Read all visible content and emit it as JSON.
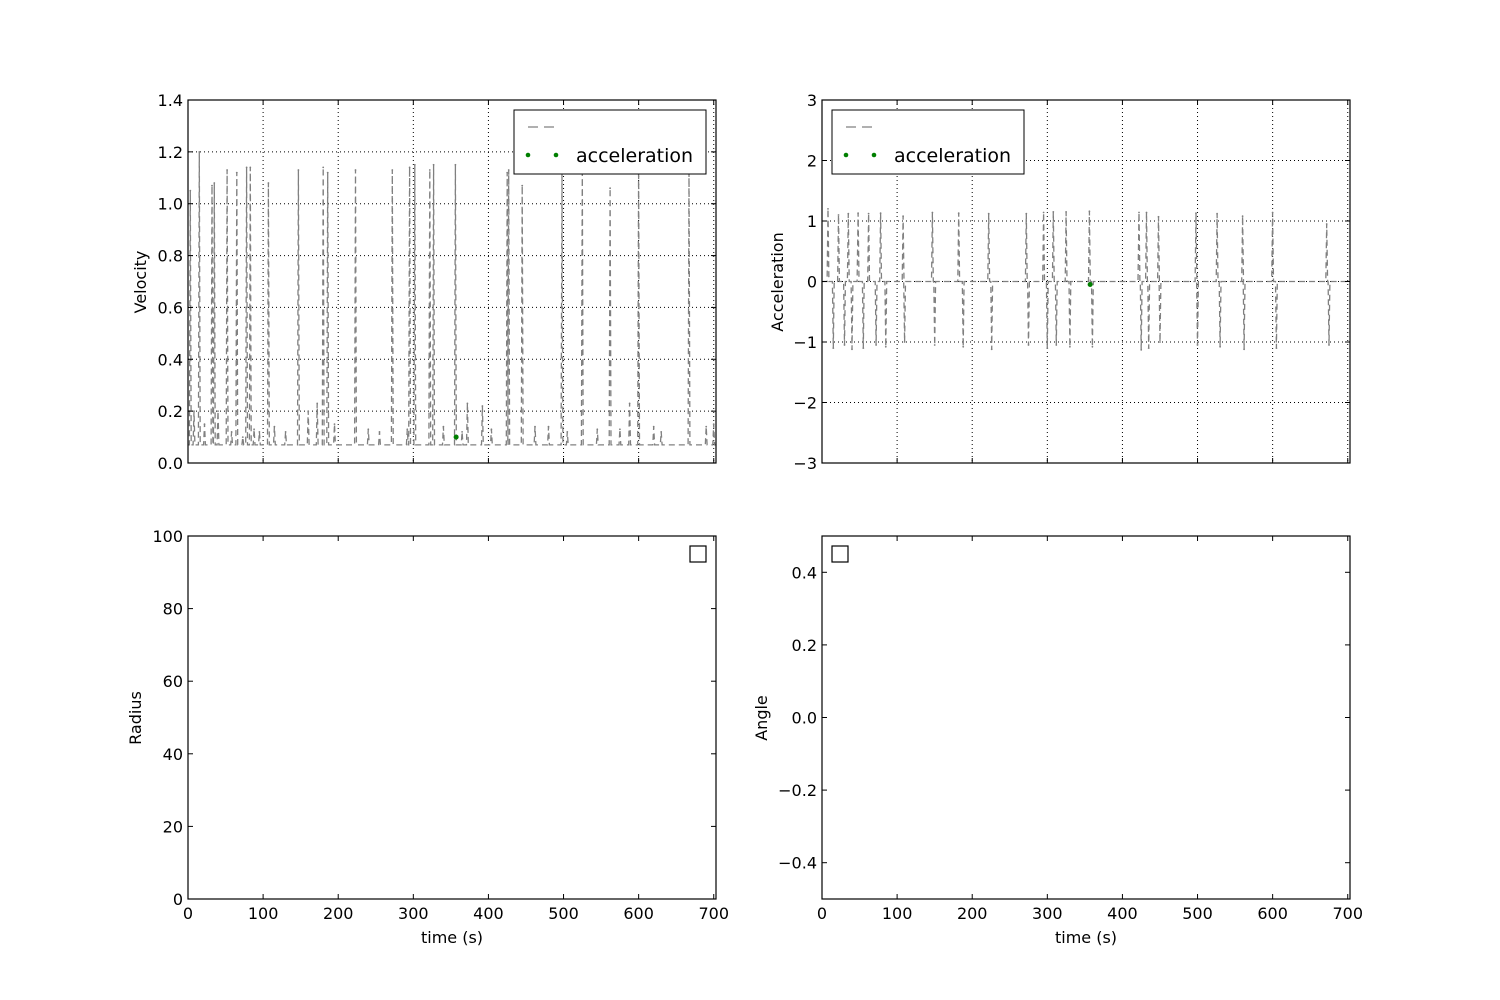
{
  "colors": {
    "series_line": "#808080",
    "series_point": "#007f00",
    "grid": "#000000",
    "background": "#ffffff"
  },
  "chart_data": [
    {
      "type": "line",
      "panel": "top-left",
      "xlabel": "",
      "ylabel": "Velocity",
      "xlim": [
        0,
        703
      ],
      "ylim": [
        0,
        1.4
      ],
      "xticks": [
        0,
        100,
        200,
        300,
        400,
        500,
        600,
        700
      ],
      "yticks": [
        0.0,
        0.2,
        0.4,
        0.6,
        0.8,
        1.0,
        1.2,
        1.4
      ],
      "ytick_labels": [
        "0.0",
        "0.2",
        "0.4",
        "0.6",
        "0.8",
        "1.0",
        "1.2",
        "1.4"
      ],
      "show_xtick_labels": false,
      "grid": true,
      "legend": {
        "placement": "top-right",
        "entries": [
          "",
          "acceleration"
        ]
      },
      "series": [
        {
          "style": "dashed",
          "color": "#808080",
          "baseline": 0.07,
          "spikes": [
            [
              3,
              1.05
            ],
            [
              8,
              0.2
            ],
            [
              15,
              1.2
            ],
            [
              22,
              0.15
            ],
            [
              32,
              1.07
            ],
            [
              35,
              1.08
            ],
            [
              40,
              0.2
            ],
            [
              52,
              1.13
            ],
            [
              58,
              0.12
            ],
            [
              65,
              1.12
            ],
            [
              73,
              0.1
            ],
            [
              78,
              1.14
            ],
            [
              83,
              1.14
            ],
            [
              88,
              0.13
            ],
            [
              95,
              0.12
            ],
            [
              107,
              1.08
            ],
            [
              115,
              0.14
            ],
            [
              130,
              0.12
            ],
            [
              147,
              1.13
            ],
            [
              160,
              0.2
            ],
            [
              172,
              0.23
            ],
            [
              180,
              1.14
            ],
            [
              186,
              1.12
            ],
            [
              195,
              0.15
            ],
            [
              223,
              1.13
            ],
            [
              240,
              0.13
            ],
            [
              255,
              0.12
            ],
            [
              272,
              1.13
            ],
            [
              292,
              0.13
            ],
            [
              295,
              1.14
            ],
            [
              302,
              1.15
            ],
            [
              322,
              1.13
            ],
            [
              327,
              1.15
            ],
            [
              340,
              0.14
            ],
            [
              356,
              1.15
            ],
            [
              365,
              0.12
            ],
            [
              372,
              0.23
            ],
            [
              392,
              0.22
            ],
            [
              404,
              0.13
            ],
            [
              425,
              1.12
            ],
            [
              427,
              1.13
            ],
            [
              445,
              1.07
            ],
            [
              462,
              0.14
            ],
            [
              480,
              0.14
            ],
            [
              498,
              1.12
            ],
            [
              505,
              0.12
            ],
            [
              525,
              1.12
            ],
            [
              545,
              0.13
            ],
            [
              562,
              1.06
            ],
            [
              575,
              0.13
            ],
            [
              588,
              0.23
            ],
            [
              600,
              1.13
            ],
            [
              620,
              0.14
            ],
            [
              630,
              0.12
            ],
            [
              667,
              1.12
            ],
            [
              690,
              0.14
            ],
            [
              700,
              0.15
            ]
          ]
        },
        {
          "name": "acceleration",
          "style": "points",
          "color": "#007f00",
          "points": [
            [
              357,
              0.1
            ]
          ]
        }
      ]
    },
    {
      "type": "line",
      "panel": "top-right",
      "xlabel": "",
      "ylabel": "Acceleration",
      "xlim": [
        0,
        703
      ],
      "ylim": [
        -3,
        3
      ],
      "xticks": [
        0,
        100,
        200,
        300,
        400,
        500,
        600,
        700
      ],
      "yticks": [
        -3,
        -2,
        -1,
        0,
        1,
        2,
        3
      ],
      "ytick_labels": [
        "−3",
        "−2",
        "−1",
        "0",
        "1",
        "2",
        "3"
      ],
      "show_xtick_labels": false,
      "grid": true,
      "legend": {
        "placement": "top-left",
        "entries": [
          "",
          "acceleration"
        ]
      },
      "series": [
        {
          "style": "dashed",
          "color": "#808080",
          "baseline": 0.0,
          "spikes": [
            [
              8,
              1.2
            ],
            [
              15,
              -1.1
            ],
            [
              22,
              1.1
            ],
            [
              30,
              -1.05
            ],
            [
              35,
              1.12
            ],
            [
              40,
              -1.12
            ],
            [
              48,
              1.13
            ],
            [
              55,
              -1.1
            ],
            [
              62,
              1.12
            ],
            [
              72,
              -1.05
            ],
            [
              78,
              1.13
            ],
            [
              85,
              -1.08
            ],
            [
              108,
              1.08
            ],
            [
              110,
              -1.0
            ],
            [
              147,
              1.14
            ],
            [
              150,
              -1.05
            ],
            [
              182,
              1.13
            ],
            [
              188,
              -1.08
            ],
            [
              222,
              1.12
            ],
            [
              226,
              -1.12
            ],
            [
              272,
              1.12
            ],
            [
              275,
              -1.05
            ],
            [
              295,
              1.14
            ],
            [
              300,
              -1.1
            ],
            [
              308,
              1.15
            ],
            [
              312,
              -1.05
            ],
            [
              325,
              1.15
            ],
            [
              330,
              -1.08
            ],
            [
              356,
              1.16
            ],
            [
              360,
              -1.08
            ],
            [
              422,
              1.14
            ],
            [
              425,
              -1.13
            ],
            [
              432,
              1.14
            ],
            [
              435,
              -1.1
            ],
            [
              448,
              1.07
            ],
            [
              450,
              -1.0
            ],
            [
              498,
              1.13
            ],
            [
              500,
              -1.05
            ],
            [
              526,
              1.12
            ],
            [
              530,
              -1.08
            ],
            [
              560,
              1.08
            ],
            [
              562,
              -1.12
            ],
            [
              600,
              1.14
            ],
            [
              605,
              -1.1
            ],
            [
              672,
              0.95
            ],
            [
              675,
              -1.05
            ]
          ]
        },
        {
          "name": "acceleration",
          "style": "points",
          "color": "#007f00",
          "points": [
            [
              357,
              -0.05
            ]
          ]
        }
      ]
    },
    {
      "type": "line",
      "panel": "bottom-left",
      "xlabel": "time (s)",
      "ylabel": "Radius",
      "xlim": [
        0,
        703
      ],
      "ylim": [
        0,
        100
      ],
      "xticks": [
        0,
        100,
        200,
        300,
        400,
        500,
        600,
        700
      ],
      "xtick_labels": [
        "0",
        "100",
        "200",
        "300",
        "400",
        "500",
        "600",
        "700"
      ],
      "yticks": [
        0,
        20,
        40,
        60,
        80,
        100
      ],
      "ytick_labels": [
        "0",
        "20",
        "40",
        "60",
        "80",
        "100"
      ],
      "show_xtick_labels": true,
      "grid": false,
      "legend": {
        "placement": "top-right",
        "entries": []
      },
      "series": []
    },
    {
      "type": "line",
      "panel": "bottom-right",
      "xlabel": "time (s)",
      "ylabel": "Angle",
      "xlim": [
        0,
        703
      ],
      "ylim": [
        -0.5,
        0.5
      ],
      "xticks": [
        0,
        100,
        200,
        300,
        400,
        500,
        600,
        700
      ],
      "xtick_labels": [
        "0",
        "100",
        "200",
        "300",
        "400",
        "500",
        "600",
        "700"
      ],
      "yticks": [
        -0.4,
        -0.2,
        0.0,
        0.2,
        0.4
      ],
      "ytick_labels": [
        "−0.4",
        "−0.2",
        "0.0",
        "0.2",
        "0.4"
      ],
      "show_xtick_labels": true,
      "grid": false,
      "legend": {
        "placement": "top-left",
        "entries": []
      },
      "series": []
    }
  ]
}
